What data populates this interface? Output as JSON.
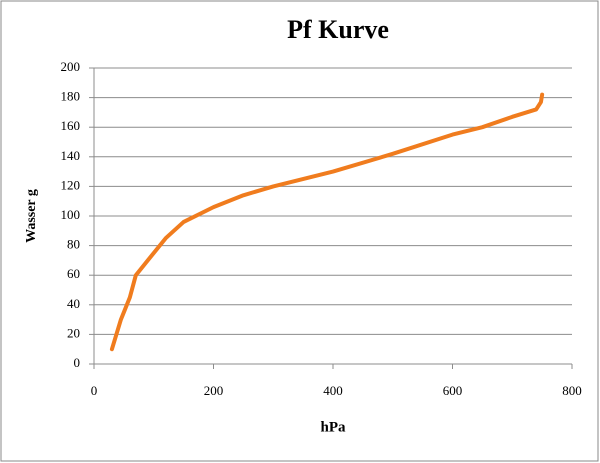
{
  "chart_data": {
    "type": "line",
    "title": "Pf Kurve",
    "x_label": "hPa",
    "y_label": "Wasser g",
    "x": [
      30,
      45,
      60,
      70,
      90,
      120,
      150,
      200,
      250,
      300,
      400,
      500,
      600,
      650,
      700,
      740,
      748,
      750
    ],
    "series": [
      {
        "name": "Pf Kurve",
        "color": "#f07c1e",
        "values": [
          10,
          30,
          45,
          60,
          70,
          85,
          96,
          106,
          114,
          120,
          130,
          142,
          155,
          160,
          167,
          172,
          177,
          182
        ]
      }
    ],
    "xlim": [
      0,
      800
    ],
    "xticks": [
      0,
      200,
      400,
      600,
      800
    ],
    "ylim": [
      0,
      200
    ],
    "yticks": [
      0,
      20,
      40,
      60,
      80,
      100,
      120,
      140,
      160,
      180,
      200
    ],
    "grid": true
  }
}
